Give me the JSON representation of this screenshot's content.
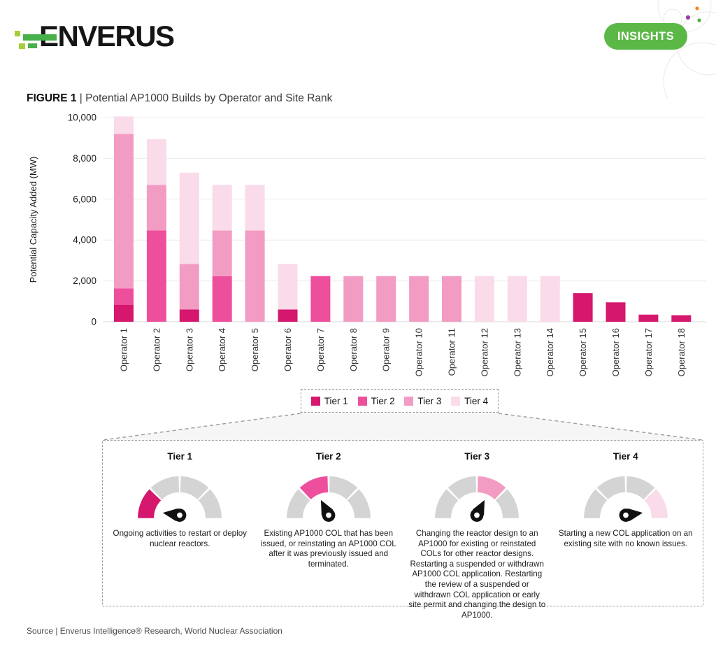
{
  "header": {
    "logo_text": "ENVERUS",
    "insights_label": "INSIGHTS",
    "insights_bg": "#5bb847",
    "logo_green_bright": "#47b04b",
    "logo_green_light": "#a6ce39",
    "decor_dot_colors": {
      "orange": "#f5821f",
      "purple": "#9b3fa8",
      "green": "#52b043"
    }
  },
  "figure": {
    "label": "FIGURE 1",
    "separator": "|",
    "title": "Potential AP1000 Builds by Operator and Site Rank"
  },
  "chart_data": {
    "type": "bar",
    "stacked": true,
    "title": "Potential AP1000 Builds by Operator and Site Rank",
    "xlabel": "",
    "ylabel": "Potential Capacity Added (MW)",
    "ylim": [
      0,
      10000
    ],
    "yticks": [
      "0",
      "2,000",
      "4,000",
      "6,000",
      "8,000",
      "10,000"
    ],
    "grid": true,
    "legend_position": "below",
    "categories": [
      "Operator 1",
      "Operator 2",
      "Operator 3",
      "Operator 4",
      "Operator 5",
      "Operator 6",
      "Operator 7",
      "Operator 8",
      "Operator 9",
      "Operator 10",
      "Operator 11",
      "Operator 12",
      "Operator 13",
      "Operator 14",
      "Operator 15",
      "Operator 16",
      "Operator 17",
      "Operator 18"
    ],
    "series": [
      {
        "name": "Tier 1",
        "color": "#d6176e",
        "values": [
          835,
          0,
          600,
          0,
          0,
          600,
          0,
          0,
          0,
          0,
          0,
          0,
          0,
          0,
          1400,
          950,
          350,
          320
        ]
      },
      {
        "name": "Tier 2",
        "color": "#ee4f9c",
        "values": [
          800,
          4468,
          0,
          2234,
          0,
          0,
          2234,
          0,
          0,
          0,
          0,
          0,
          0,
          0,
          0,
          0,
          0,
          0
        ]
      },
      {
        "name": "Tier 3",
        "color": "#f29cc3",
        "values": [
          7565,
          2234,
          2234,
          2234,
          4468,
          0,
          0,
          2234,
          2234,
          2234,
          2234,
          0,
          0,
          0,
          0,
          0,
          0,
          0
        ]
      },
      {
        "name": "Tier 4",
        "color": "#fadbe9",
        "values": [
          853,
          2234,
          4468,
          2234,
          2234,
          2234,
          0,
          0,
          0,
          0,
          0,
          2234,
          2234,
          2234,
          0,
          0,
          0,
          0
        ]
      }
    ]
  },
  "legend": {
    "items": [
      {
        "label": "Tier 1",
        "color": "#d6176e"
      },
      {
        "label": "Tier 2",
        "color": "#ee4f9c"
      },
      {
        "label": "Tier 3",
        "color": "#f29cc3"
      },
      {
        "label": "Tier 4",
        "color": "#fadbe9"
      }
    ]
  },
  "tiers": [
    {
      "title": "Tier 1",
      "description": "Ongoing activities to restart or deploy nuclear reactors.",
      "color": "#d6176e",
      "highlight_segment": 1,
      "needle_angle": 172
    },
    {
      "title": "Tier 2",
      "description": "Existing AP1000 COL that has been issued, or reinstating an AP1000 COL after it was previously issued and terminated.",
      "color": "#ee4f9c",
      "highlight_segment": 2,
      "needle_angle": 117
    },
    {
      "title": "Tier 3",
      "description": "Changing the reactor design to an AP1000 for existing or reinstated COLs for other reactor designs. Restarting a suspended or withdrawn AP1000 COL application. Restarting the review of a suspended or withdrawn COL application or early site permit and changing the design to AP1000.",
      "color": "#f29cc3",
      "highlight_segment": 3,
      "needle_angle": 63
    },
    {
      "title": "Tier 4",
      "description": "Starting a new COL application on an existing site with no known issues.",
      "color": "#fadbe9",
      "highlight_segment": 4,
      "needle_angle": 8
    }
  ],
  "footer": {
    "source": "Source | Enverus Intelligence® Research, World Nuclear Association"
  }
}
